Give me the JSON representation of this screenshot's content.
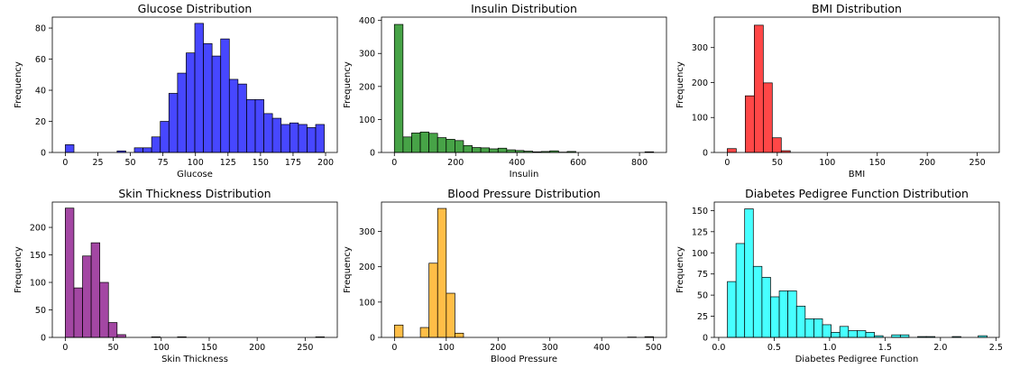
{
  "chart_data": [
    {
      "type": "bar",
      "title": "Glucose Distribution",
      "xlabel": "Glucose",
      "ylabel": "Frequency",
      "color": "#0000ff",
      "xlim": [
        -10,
        209
      ],
      "ylim": [
        0,
        87
      ],
      "xticks": [
        0,
        25,
        50,
        75,
        100,
        125,
        150,
        175,
        200
      ],
      "yticks": [
        0,
        20,
        40,
        60,
        80
      ],
      "bin_edges": [
        0,
        6.63,
        13.27,
        19.9,
        26.53,
        33.17,
        39.8,
        46.43,
        53.07,
        59.7,
        66.33,
        72.97,
        79.6,
        86.23,
        92.87,
        99.5,
        106.13,
        112.77,
        119.4,
        126.03,
        132.67,
        139.3,
        145.93,
        152.57,
        159.2,
        165.83,
        172.47,
        179.1,
        185.73,
        192.37,
        199
      ],
      "values": [
        5,
        0,
        0,
        0,
        0,
        0,
        1,
        0,
        3,
        3,
        10,
        20,
        38,
        51,
        64,
        83,
        70,
        62,
        73,
        47,
        44,
        34,
        34,
        25,
        22,
        18,
        19,
        18,
        16,
        18
      ]
    },
    {
      "type": "bar",
      "title": "Insulin Distribution",
      "xlabel": "Insulin",
      "ylabel": "Frequency",
      "color": "#008000",
      "xlim": [
        -42,
        888
      ],
      "ylim": [
        0,
        410
      ],
      "xticks": [
        0,
        200,
        400,
        600,
        800
      ],
      "yticks": [
        0,
        100,
        200,
        300,
        400
      ],
      "bin_edges": [
        0,
        28.2,
        56.4,
        84.6,
        112.8,
        141,
        169.2,
        197.4,
        225.6,
        253.8,
        282,
        310.2,
        338.4,
        366.6,
        394.8,
        423,
        451.2,
        479.4,
        507.6,
        535.8,
        564,
        592.2,
        620.4,
        648.6,
        676.8,
        705,
        733.2,
        761.4,
        789.6,
        817.8,
        846
      ],
      "values": [
        388,
        47,
        59,
        62,
        58,
        45,
        40,
        36,
        21,
        15,
        14,
        11,
        13,
        8,
        6,
        4,
        2,
        3,
        5,
        1,
        3,
        0,
        0,
        0,
        0,
        0,
        0,
        0,
        0,
        2
      ]
    },
    {
      "type": "bar",
      "title": "BMI Distribution",
      "xlabel": "BMI",
      "ylabel": "Frequency",
      "color": "#ff0000",
      "xlim": [
        -13,
        272
      ],
      "ylim": [
        0,
        387
      ],
      "xticks": [
        0,
        50,
        100,
        150,
        200,
        250
      ],
      "yticks": [
        0,
        100,
        200,
        300
      ],
      "bin_edges": [
        0,
        9,
        18,
        27,
        36,
        45,
        54,
        63,
        72,
        81,
        90,
        99,
        108,
        117,
        126,
        135,
        144,
        153,
        162,
        171,
        180,
        189,
        198,
        207,
        216,
        225,
        234,
        243,
        252,
        261,
        270
      ],
      "values": [
        11,
        0,
        162,
        364,
        199,
        42,
        5,
        0,
        0,
        0,
        0,
        0,
        0,
        0,
        0,
        0,
        0,
        0,
        0,
        0,
        0,
        0,
        0,
        0,
        0,
        0,
        0,
        0,
        0,
        0
      ]
    },
    {
      "type": "bar",
      "title": "Skin Thickness Distribution",
      "xlabel": "Skin Thickness",
      "ylabel": "Frequency",
      "color": "#800080",
      "xlim": [
        -13.5,
        283.5
      ],
      "ylim": [
        0,
        246
      ],
      "xticks": [
        0,
        50,
        100,
        150,
        200,
        250
      ],
      "yticks": [
        0,
        50,
        100,
        150,
        200
      ],
      "bin_edges": [
        0,
        9,
        18,
        27,
        36,
        45,
        54,
        63,
        72,
        81,
        90,
        99,
        108,
        117,
        126,
        135,
        144,
        153,
        162,
        171,
        180,
        189,
        198,
        207,
        216,
        225,
        234,
        243,
        252,
        261,
        270
      ],
      "values": [
        235,
        90,
        148,
        172,
        100,
        27,
        5,
        0,
        0,
        0,
        1,
        0,
        0,
        1,
        0,
        0,
        0,
        0,
        0,
        0,
        0,
        0,
        0,
        0,
        0,
        0,
        0,
        0,
        0,
        1
      ]
    },
    {
      "type": "bar",
      "title": "Blood Pressure Distribution",
      "xlabel": "Blood Pressure",
      "ylabel": "Frequency",
      "color": "#ffa500",
      "xlim": [
        -25,
        525
      ],
      "ylim": [
        0,
        383
      ],
      "xticks": [
        0,
        100,
        200,
        300,
        400,
        500
      ],
      "yticks": [
        0,
        100,
        200,
        300
      ],
      "bin_edges": [
        0,
        16.67,
        33.33,
        50,
        66.67,
        83.33,
        100,
        116.67,
        133.33,
        150,
        166.67,
        183.33,
        200,
        216.67,
        233.33,
        250,
        266.67,
        283.33,
        300,
        316.67,
        333.33,
        350,
        366.67,
        383.33,
        400,
        416.67,
        433.33,
        450,
        466.67,
        483.33,
        500
      ],
      "values": [
        35,
        0,
        0,
        28,
        210,
        365,
        125,
        12,
        0,
        0,
        0,
        0,
        0,
        0,
        0,
        0,
        0,
        0,
        0,
        0,
        0,
        0,
        0,
        0,
        0,
        0,
        0,
        1,
        0,
        2
      ]
    },
    {
      "type": "bar",
      "title": "Diabetes Pedigree Function Distribution",
      "xlabel": "Diabetes Pedigree Function",
      "ylabel": "Frequency",
      "color": "#00ffff",
      "xlim": [
        -0.04,
        2.53
      ],
      "ylim": [
        0,
        160
      ],
      "xticks": [
        0.0,
        0.5,
        1.0,
        1.5,
        2.0,
        2.5
      ],
      "yticks": [
        0,
        25,
        50,
        75,
        100,
        125,
        150
      ],
      "tick_labels": [
        "0.0",
        "0.5",
        "1.0",
        "1.5",
        "2.0",
        "2.5"
      ],
      "bin_edges": [
        0.078,
        0.156,
        0.234,
        0.312,
        0.39,
        0.468,
        0.546,
        0.624,
        0.702,
        0.78,
        0.858,
        0.936,
        1.014,
        1.092,
        1.17,
        1.248,
        1.326,
        1.404,
        1.482,
        1.56,
        1.638,
        1.716,
        1.794,
        1.872,
        1.95,
        2.028,
        2.106,
        2.184,
        2.262,
        2.34,
        2.42
      ],
      "values": [
        66,
        111,
        152,
        84,
        71,
        48,
        55,
        55,
        37,
        22,
        22,
        15,
        6,
        13,
        8,
        8,
        6,
        2,
        0,
        3,
        3,
        0,
        1,
        1,
        0,
        0,
        1,
        0,
        0,
        2
      ]
    }
  ]
}
